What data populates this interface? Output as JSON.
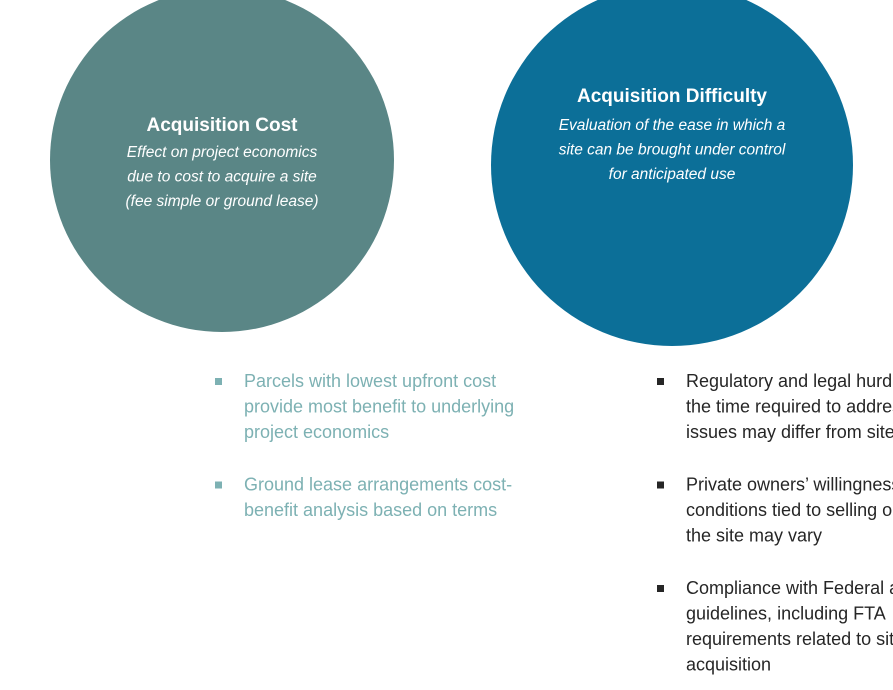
{
  "left": {
    "title": "Acquisition Cost",
    "description": [
      "Effect on project economics",
      "due to cost to acquire a site",
      "(fee simple or ground lease)"
    ],
    "bullets": [
      [
        "Parcels with lowest upfront cost",
        "provide most benefit to underlying",
        "project economics"
      ],
      [
        "Ground lease arrangements cost-",
        "benefit analysis based on terms"
      ]
    ]
  },
  "right": {
    "title": "Acquisition Difficulty",
    "description": [
      "Evaluation of the ease in which a",
      "site can be brought under control",
      "for anticipated use"
    ],
    "bullets": [
      [
        "Regulatory and legal hurdles, and",
        "the time required to address such",
        "issues may differ from site to site"
      ],
      [
        "Private owners’ willingness or",
        "conditions tied to selling or leasing",
        "the site may vary"
      ],
      [
        "Compliance with Federal and State",
        "guidelines, including FTA",
        "requirements related to site",
        "acquisition"
      ]
    ]
  }
}
